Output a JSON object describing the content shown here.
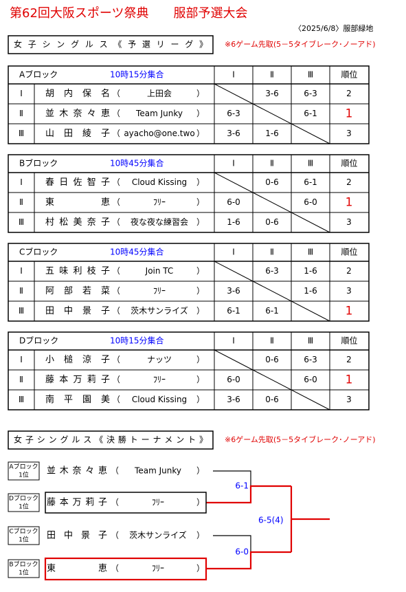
{
  "header": {
    "title": "第62回大阪スポーツ祭典　　服部予選大会",
    "date": "〈2025/6/8〉服部緑地"
  },
  "brackets": [
    "（",
    "）"
  ],
  "columns": [
    "Ⅰ",
    "Ⅱ",
    "Ⅲ",
    "順位"
  ],
  "league": {
    "title": "女子シングルス《予選リーグ》",
    "note": "※6ゲーム先取(5－5タイブレーク･ノーアド)",
    "blocks": [
      {
        "name": "Aブロック",
        "time": "10時15分集合",
        "rows": [
          {
            "name": "胡内保名",
            "club": "上田会",
            "scores": [
              null,
              "3-6",
              "6-3"
            ],
            "rank": 2
          },
          {
            "name": "並木奈々恵",
            "club": "Team Junky",
            "scores": [
              "6-3",
              null,
              "6-1"
            ],
            "rank": 1
          },
          {
            "name": "山田綾子",
            "club": "ayacho@one.two",
            "scores": [
              "3-6",
              "1-6",
              null
            ],
            "rank": 3
          }
        ]
      },
      {
        "name": "Bブロック",
        "time": "10時45分集合",
        "rows": [
          {
            "name": "春日佐智子",
            "club": "Cloud Kissing",
            "scores": [
              null,
              "0-6",
              "6-1"
            ],
            "rank": 2
          },
          {
            "name": "東恵",
            "club": "ﾌﾘｰ",
            "scores": [
              "6-0",
              null,
              "6-0"
            ],
            "rank": 1
          },
          {
            "name": "村松美奈子",
            "club": "夜な夜な練習会",
            "scores": [
              "1-6",
              "0-6",
              null
            ],
            "rank": 3
          }
        ]
      },
      {
        "name": "Cブロック",
        "time": "10時45分集合",
        "rows": [
          {
            "name": "五味利枝子",
            "club": "Join TC",
            "scores": [
              null,
              "6-3",
              "1-6"
            ],
            "rank": 2
          },
          {
            "name": "阿部若菜",
            "club": "ﾌﾘｰ",
            "scores": [
              "3-6",
              null,
              "1-6"
            ],
            "rank": 3
          },
          {
            "name": "田中景子",
            "club": "茨木サンライズ",
            "scores": [
              "6-1",
              "6-1",
              null
            ],
            "rank": 1
          }
        ]
      },
      {
        "name": "Dブロック",
        "time": "10時15分集合",
        "rows": [
          {
            "name": "小槌涼子",
            "club": "ナッツ",
            "scores": [
              null,
              "0-6",
              "6-3"
            ],
            "rank": 2
          },
          {
            "name": "藤本万莉子",
            "club": "ﾌﾘｰ",
            "scores": [
              "6-0",
              null,
              "6-0"
            ],
            "rank": 1
          },
          {
            "name": "南平園美",
            "club": "Cloud Kissing",
            "scores": [
              "3-6",
              "0-6",
              null
            ],
            "rank": 3
          }
        ]
      }
    ]
  },
  "tournament": {
    "title": "女子シングルス《決勝トーナメント》",
    "note": "※6ゲーム先取(5－5タイブレーク･ノーアド)",
    "entries": [
      {
        "block": "Aブロック",
        "place": "1位",
        "name": "並木奈々恵",
        "club": "Team Junky"
      },
      {
        "block": "Dブロック",
        "place": "1位",
        "name": "藤本万莉子",
        "club": "ﾌﾘｰ"
      },
      {
        "block": "Cブロック",
        "place": "1位",
        "name": "田中景子",
        "club": "茨木サンライズ"
      },
      {
        "block": "Bブロック",
        "place": "1位",
        "name": "東恵",
        "club": "ﾌﾘｰ"
      }
    ],
    "semi_scores": [
      "6-1",
      "6-0"
    ],
    "final_score": "6-5(4)"
  }
}
